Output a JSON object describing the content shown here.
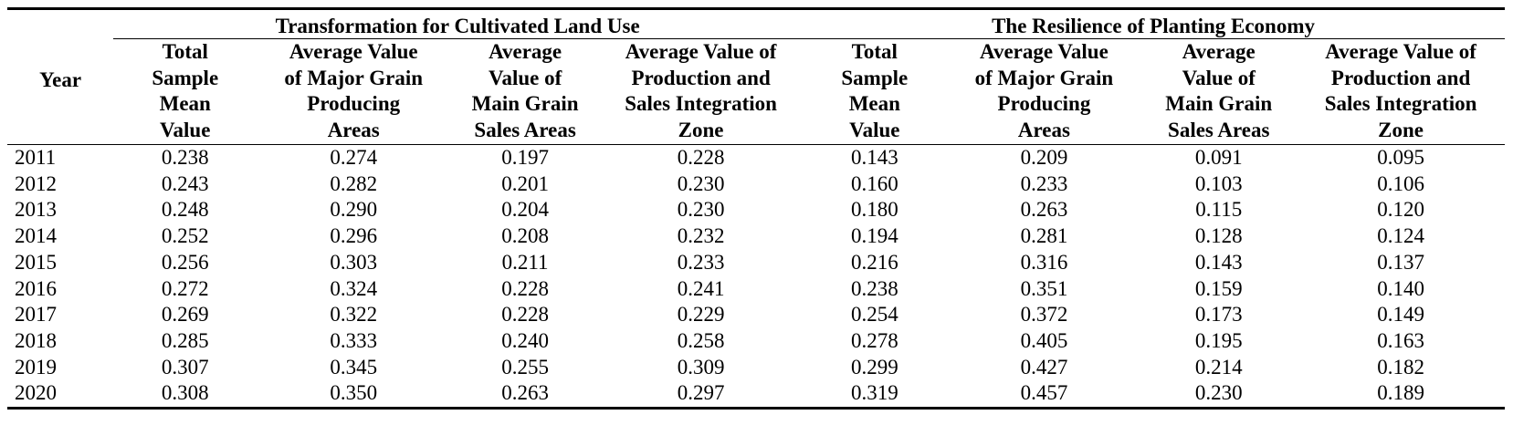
{
  "table": {
    "year_header": "Year",
    "groups": [
      {
        "title": "Transformation for Cultivated Land Use"
      },
      {
        "title": "The Resilience of Planting Economy"
      }
    ],
    "subheaders": [
      {
        "lines": [
          "Total",
          "Sample",
          "Mean",
          "Value"
        ]
      },
      {
        "lines": [
          "Average Value",
          "of Major Grain",
          "Producing",
          "Areas"
        ]
      },
      {
        "lines": [
          "Average",
          "Value of",
          "Main Grain",
          "Sales Areas"
        ]
      },
      {
        "lines": [
          "Average Value of",
          "Production and",
          "Sales Integration",
          "Zone"
        ]
      },
      {
        "lines": [
          "Total",
          "Sample",
          "Mean",
          "Value"
        ]
      },
      {
        "lines": [
          "Average Value",
          "of Major Grain",
          "Producing",
          "Areas"
        ]
      },
      {
        "lines": [
          "Average",
          "Value of",
          "Main Grain",
          "Sales Areas"
        ]
      },
      {
        "lines": [
          "Average Value of",
          "Production and",
          "Sales Integration",
          "Zone"
        ]
      }
    ],
    "rows": [
      {
        "year": "2011",
        "values": [
          "0.238",
          "0.274",
          "0.197",
          "0.228",
          "0.143",
          "0.209",
          "0.091",
          "0.095"
        ]
      },
      {
        "year": "2012",
        "values": [
          "0.243",
          "0.282",
          "0.201",
          "0.230",
          "0.160",
          "0.233",
          "0.103",
          "0.106"
        ]
      },
      {
        "year": "2013",
        "values": [
          "0.248",
          "0.290",
          "0.204",
          "0.230",
          "0.180",
          "0.263",
          "0.115",
          "0.120"
        ]
      },
      {
        "year": "2014",
        "values": [
          "0.252",
          "0.296",
          "0.208",
          "0.232",
          "0.194",
          "0.281",
          "0.128",
          "0.124"
        ]
      },
      {
        "year": "2015",
        "values": [
          "0.256",
          "0.303",
          "0.211",
          "0.233",
          "0.216",
          "0.316",
          "0.143",
          "0.137"
        ]
      },
      {
        "year": "2016",
        "values": [
          "0.272",
          "0.324",
          "0.228",
          "0.241",
          "0.238",
          "0.351",
          "0.159",
          "0.140"
        ]
      },
      {
        "year": "2017",
        "values": [
          "0.269",
          "0.322",
          "0.228",
          "0.229",
          "0.254",
          "0.372",
          "0.173",
          "0.149"
        ]
      },
      {
        "year": "2018",
        "values": [
          "0.285",
          "0.333",
          "0.240",
          "0.258",
          "0.278",
          "0.405",
          "0.195",
          "0.163"
        ]
      },
      {
        "year": "2019",
        "values": [
          "0.307",
          "0.345",
          "0.255",
          "0.309",
          "0.299",
          "0.427",
          "0.214",
          "0.182"
        ]
      },
      {
        "year": "2020",
        "values": [
          "0.308",
          "0.350",
          "0.263",
          "0.297",
          "0.319",
          "0.457",
          "0.230",
          "0.189"
        ]
      }
    ]
  }
}
